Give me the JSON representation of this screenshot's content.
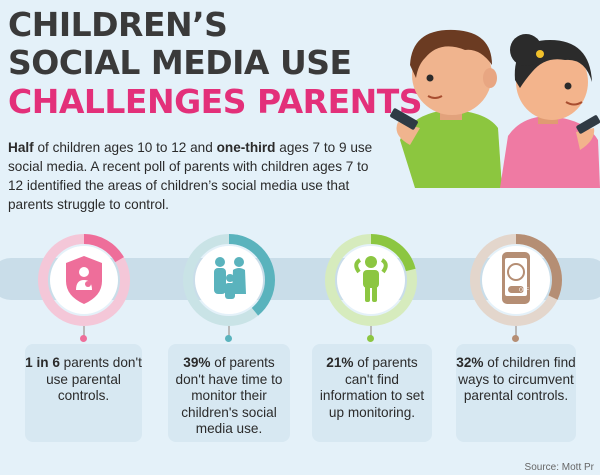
{
  "title": {
    "line1": "CHILDREN’S",
    "line2": "SOCIAL MEDIA USE",
    "line3": "CHALLENGES PARENTS"
  },
  "intro": {
    "s1_bold": "Half",
    "s2": " of children ages 10 to 12 and ",
    "s3_bold": "one-third",
    "s4": " ages 7 to 9 use social media. A recent poll of parents with children ages 7 to 12 identified the areas of children’s social media use that parents struggle to control."
  },
  "stats": [
    {
      "bold": "1 in 6",
      "rest": " parents don't use parental controls.",
      "color": "#ee6e9a",
      "fraction": 0.1667,
      "icon": "shield-parent-child-icon"
    },
    {
      "bold": "39%",
      "rest": " of parents don't have time to monitor their children's social media use.",
      "color": "#5ab3bd",
      "fraction": 0.39,
      "icon": "family-icon"
    },
    {
      "bold": "21%",
      "rest": " of parents can't find information to set up monitoring.",
      "color": "#8cc641",
      "fraction": 0.21,
      "icon": "confused-person-icon"
    },
    {
      "bold": "32%",
      "rest": " of children find ways to circumvent parental controls.",
      "color": "#b58e74",
      "fraction": 0.32,
      "icon": "phone-off-icon"
    }
  ],
  "icon_text": {
    "off_label": "OFF"
  },
  "source": "Source: Mott Pr"
}
